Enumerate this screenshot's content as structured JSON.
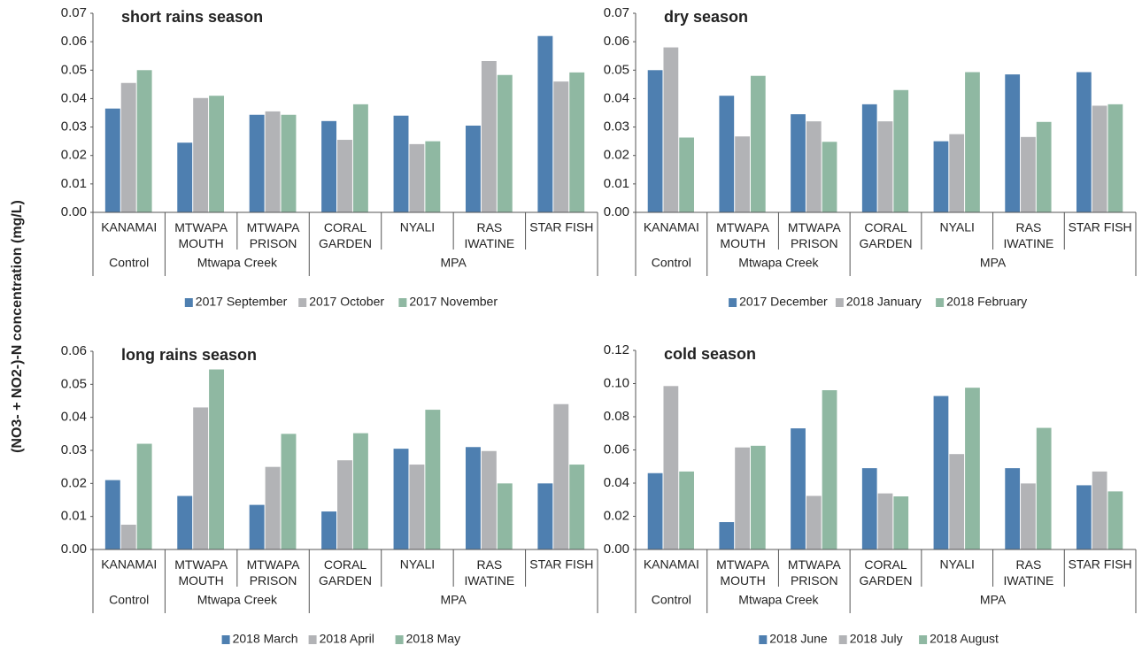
{
  "ylabel": "(NO3- + NO2-)-N concentration (mg/L)",
  "chart_data": [
    {
      "type": "bar",
      "title": "short rains season",
      "categories": [
        "KANAMAI",
        "MTWAPA\nMOUTH",
        "MTWAPA\nPRISON",
        "CORAL\nGARDEN",
        "NYALI",
        "RAS\nIWATINE",
        "STAR FISH"
      ],
      "category_groups": [
        "Control",
        "Mtwapa Creek",
        "Mtwapa Creek",
        "MPA",
        "MPA",
        "MPA",
        "MPA"
      ],
      "series": [
        {
          "name": "2017 September",
          "color": "#4e7fb0",
          "values": [
            0.0365,
            0.0245,
            0.0343,
            0.0321,
            0.034,
            0.0305,
            0.062
          ]
        },
        {
          "name": "2017 October",
          "color": "#b2b3b6",
          "values": [
            0.0455,
            0.0402,
            0.0355,
            0.0255,
            0.024,
            0.0532,
            0.046
          ]
        },
        {
          "name": "2017 November",
          "color": "#8fb8a2",
          "values": [
            0.05,
            0.041,
            0.0343,
            0.038,
            0.025,
            0.0483,
            0.0492
          ]
        }
      ],
      "ylim": [
        0,
        0.07
      ],
      "yticks": [
        {
          "value": 0,
          "label": "0.00"
        },
        {
          "value": 0.01,
          "label": "0.01"
        },
        {
          "value": 0.02,
          "label": "0.02"
        },
        {
          "value": 0.03,
          "label": "0.03"
        },
        {
          "value": 0.04,
          "label": "0.04"
        },
        {
          "value": 0.05,
          "label": "0.05"
        },
        {
          "value": 0.06,
          "label": "0.06"
        },
        {
          "value": 0.07,
          "label": "0.07"
        }
      ],
      "legend": "bottom"
    },
    {
      "type": "bar",
      "title": "dry season",
      "categories": [
        "KANAMAI",
        "MTWAPA\nMOUTH",
        "MTWAPA\nPRISON",
        "CORAL\nGARDEN",
        "NYALI",
        "RAS\nIWATINE",
        "STAR FISH"
      ],
      "category_groups": [
        "Control",
        "Mtwapa Creek",
        "Mtwapa Creek",
        "MPA",
        "MPA",
        "MPA",
        "MPA"
      ],
      "series": [
        {
          "name": "2017 December",
          "color": "#4e7fb0",
          "values": [
            0.05,
            0.041,
            0.0345,
            0.038,
            0.025,
            0.0485,
            0.0493
          ]
        },
        {
          "name": "2018 January",
          "color": "#b2b3b6",
          "values": [
            0.058,
            0.0267,
            0.032,
            0.032,
            0.0275,
            0.0265,
            0.0375
          ]
        },
        {
          "name": "2018 February",
          "color": "#8fb8a2",
          "values": [
            0.0263,
            0.048,
            0.0248,
            0.043,
            0.0493,
            0.0318,
            0.038
          ]
        }
      ],
      "ylim": [
        0,
        0.07
      ],
      "yticks": [
        {
          "value": 0,
          "label": "0.00"
        },
        {
          "value": 0.01,
          "label": "0.01"
        },
        {
          "value": 0.02,
          "label": "0.02"
        },
        {
          "value": 0.03,
          "label": "0.03"
        },
        {
          "value": 0.04,
          "label": "0.04"
        },
        {
          "value": 0.05,
          "label": "0.05"
        },
        {
          "value": 0.06,
          "label": "0.06"
        },
        {
          "value": 0.07,
          "label": "0.07"
        }
      ],
      "legend": "bottom"
    },
    {
      "type": "bar",
      "title": "long rains season",
      "categories": [
        "KANAMAI",
        "MTWAPA\nMOUTH",
        "MTWAPA\nPRISON",
        "CORAL\nGARDEN",
        "NYALI",
        "RAS\nIWATINE",
        "STAR FISH"
      ],
      "category_groups": [
        "Control",
        "Mtwapa Creek",
        "Mtwapa Creek",
        "MPA",
        "MPA",
        "MPA",
        "MPA"
      ],
      "series": [
        {
          "name": "2018 March",
          "color": "#4e7fb0",
          "values": [
            0.021,
            0.0162,
            0.0135,
            0.0115,
            0.0305,
            0.031,
            0.02
          ]
        },
        {
          "name": "2018 April",
          "color": "#b2b3b6",
          "values": [
            0.0075,
            0.043,
            0.025,
            0.027,
            0.0257,
            0.0298,
            0.044
          ]
        },
        {
          "name": "2018 May",
          "color": "#8fb8a2",
          "values": [
            0.032,
            0.0545,
            0.035,
            0.0352,
            0.0423,
            0.02,
            0.0257
          ]
        }
      ],
      "ylim": [
        0,
        0.06
      ],
      "yticks": [
        {
          "value": 0,
          "label": "0.00"
        },
        {
          "value": 0.01,
          "label": "0.01"
        },
        {
          "value": 0.02,
          "label": "0.02"
        },
        {
          "value": 0.03,
          "label": "0.03"
        },
        {
          "value": 0.04,
          "label": "0.04"
        },
        {
          "value": 0.05,
          "label": "0.05"
        },
        {
          "value": 0.06,
          "label": "0.06"
        }
      ],
      "legend": "bottom"
    },
    {
      "type": "bar",
      "title": "cold season",
      "categories": [
        "KANAMAI",
        "MTWAPA\nMOUTH",
        "MTWAPA\nPRISON",
        "CORAL\nGARDEN",
        "NYALI",
        "RAS\nIWATINE",
        "STAR FISH"
      ],
      "category_groups": [
        "Control",
        "Mtwapa Creek",
        "Mtwapa Creek",
        "MPA",
        "MPA",
        "MPA",
        "MPA"
      ],
      "series": [
        {
          "name": "2018 June",
          "color": "#4e7fb0",
          "values": [
            0.046,
            0.0165,
            0.073,
            0.049,
            0.0925,
            0.049,
            0.0387
          ]
        },
        {
          "name": "2018 July",
          "color": "#b2b3b6",
          "values": [
            0.0985,
            0.0615,
            0.0323,
            0.0338,
            0.0575,
            0.0398,
            0.047
          ]
        },
        {
          "name": "2018 August",
          "color": "#8fb8a2",
          "values": [
            0.047,
            0.0625,
            0.096,
            0.032,
            0.0975,
            0.0733,
            0.035
          ]
        }
      ],
      "ylim": [
        0,
        0.12
      ],
      "yticks": [
        {
          "value": 0,
          "label": "0.00"
        },
        {
          "value": 0.02,
          "label": "0.02"
        },
        {
          "value": 0.04,
          "label": "0.04"
        },
        {
          "value": 0.06,
          "label": "0.06"
        },
        {
          "value": 0.08,
          "label": "0.08"
        },
        {
          "value": 0.1,
          "label": "0.10"
        },
        {
          "value": 0.12,
          "label": "0.12"
        }
      ],
      "legend": "bottom"
    }
  ]
}
